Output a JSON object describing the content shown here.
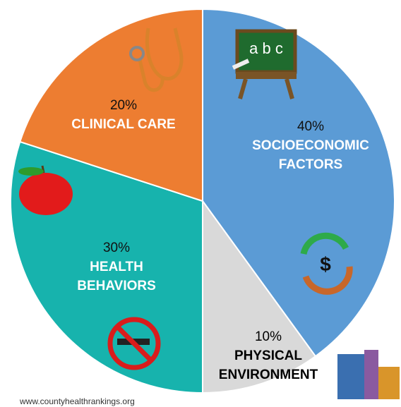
{
  "chart_data": {
    "type": "pie",
    "categories": [
      "SOCIOECONOMIC FACTORS",
      "PHYSICAL ENVIRONMENT",
      "HEALTH BEHAVIORS",
      "CLINICAL CARE"
    ],
    "values": [
      40,
      10,
      30,
      20
    ],
    "value_labels": [
      "40%",
      "10%",
      "30%",
      "20%"
    ],
    "colors": [
      "#5b9bd5",
      "#d9d9d9",
      "#17b3ad",
      "#ed7d31"
    ],
    "source": "www.countyhealthrankings.org"
  }
}
